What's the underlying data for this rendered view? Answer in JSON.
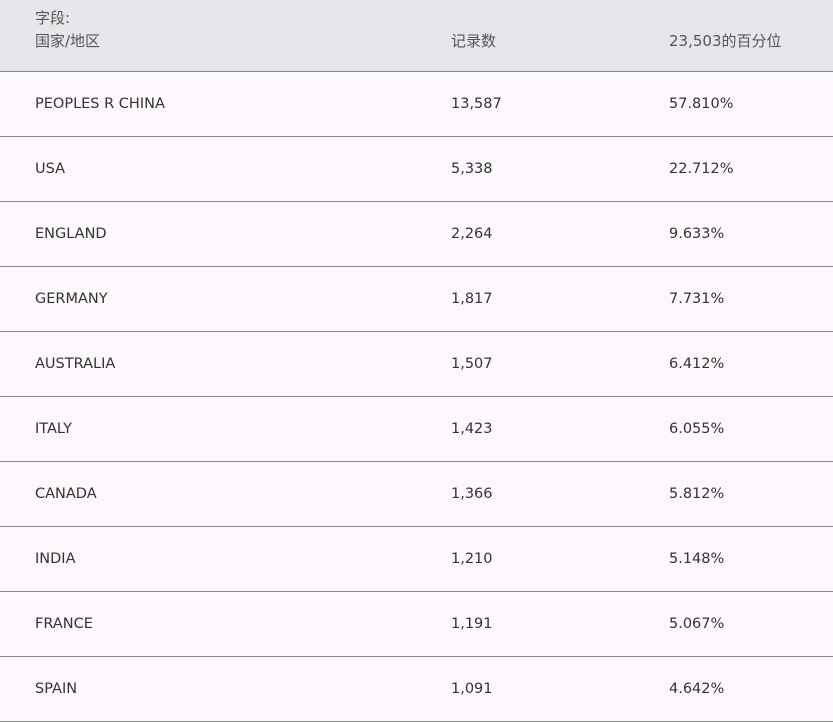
{
  "table": {
    "header": {
      "field_label": "字段:",
      "field_name": "国家/地区",
      "count": "记录数",
      "percent": "23,503的百分位"
    },
    "rows": [
      [
        "PEOPLES R CHINA",
        "13,587",
        "57.810%"
      ],
      [
        "USA",
        "5,338",
        "22.712%"
      ],
      [
        "ENGLAND",
        "2,264",
        "9.633%"
      ],
      [
        "GERMANY",
        "1,817",
        "7.731%"
      ],
      [
        "AUSTRALIA",
        "1,507",
        "6.412%"
      ],
      [
        "ITALY",
        "1,423",
        "6.055%"
      ],
      [
        "CANADA",
        "1,366",
        "5.812%"
      ],
      [
        "INDIA",
        "1,210",
        "5.148%"
      ],
      [
        "FRANCE",
        "1,191",
        "5.067%"
      ],
      [
        "SPAIN",
        "1,091",
        "4.642%"
      ]
    ]
  }
}
